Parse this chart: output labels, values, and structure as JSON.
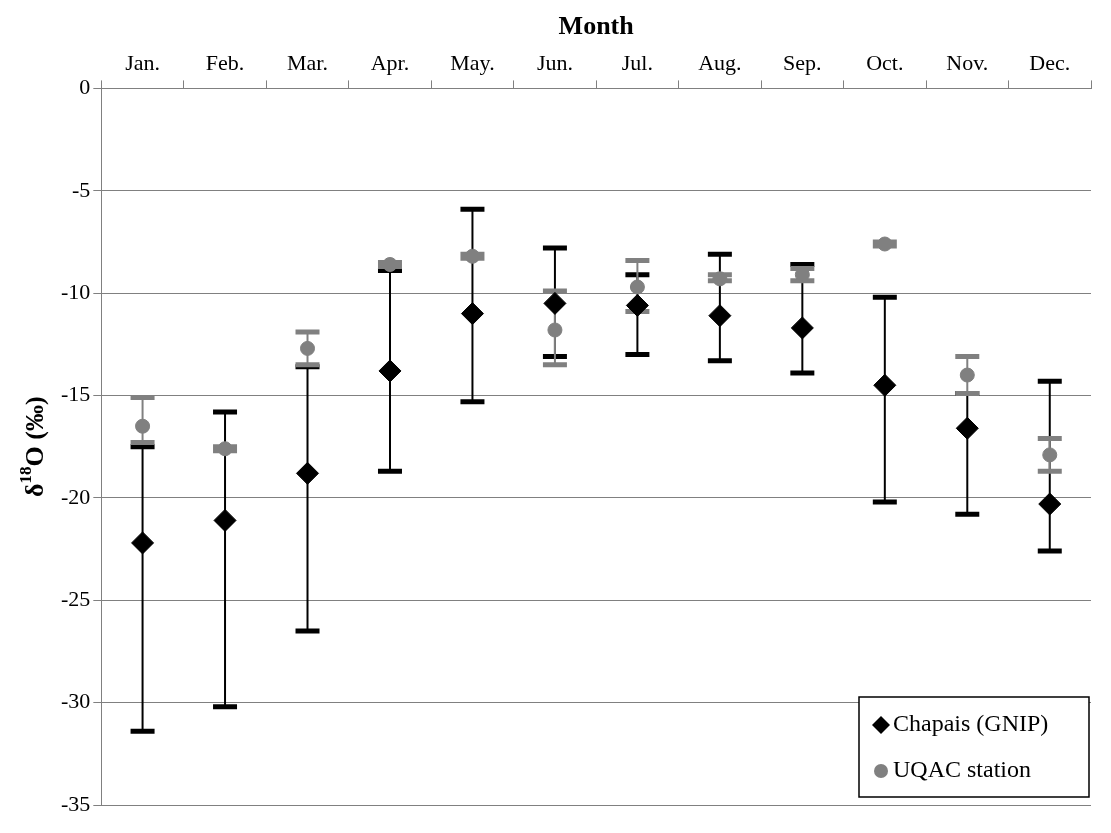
{
  "chart_data": {
    "type": "scatter",
    "xlabel": "Month",
    "ylabel": "δ$^{18}$O (‰)",
    "categories": [
      "Jan.",
      "Feb.",
      "Mar.",
      "Apr.",
      "May.",
      "Jun.",
      "Jul.",
      "Aug.",
      "Sep.",
      "Oct.",
      "Nov.",
      "Dec."
    ],
    "ylim": [
      -35,
      0
    ],
    "yticks": [
      -35,
      -30,
      -25,
      -20,
      -15,
      -10,
      -5,
      0
    ],
    "grid": "y",
    "legend": "bottom right",
    "series": [
      {
        "name": "Chapais (GNIP)",
        "color": "#000000",
        "marker": "diamond",
        "values": [
          -22.2,
          -21.1,
          -18.8,
          -13.8,
          -11.0,
          -10.5,
          -10.6,
          -11.1,
          -11.7,
          -14.5,
          -16.6,
          -20.3
        ],
        "errors": [
          [
            -31.4,
            -17.5
          ],
          [
            -30.2,
            -15.8
          ],
          [
            -26.5,
            -13.6
          ],
          [
            -18.7,
            -8.9
          ],
          [
            -15.3,
            -5.9
          ],
          [
            -13.1,
            -7.8
          ],
          [
            -13.0,
            -9.1
          ],
          [
            -13.3,
            -8.1
          ],
          [
            -13.9,
            -8.6
          ],
          [
            -20.2,
            -10.2
          ],
          [
            -20.8,
            -14.9
          ],
          [
            -22.6,
            -14.3
          ]
        ]
      },
      {
        "name": "UQAC station",
        "color": "#808080",
        "marker": "circle",
        "values": [
          -16.5,
          -17.6,
          -12.7,
          -8.6,
          -8.2,
          -11.8,
          -9.7,
          -9.3,
          -9.1,
          -7.6,
          -14.0,
          -17.9
        ],
        "errors": [
          [
            -17.3,
            -15.1
          ],
          [
            -17.7,
            -17.5
          ],
          [
            -13.5,
            -11.9
          ],
          [
            -8.7,
            -8.5
          ],
          [
            -8.3,
            -8.1
          ],
          [
            -13.5,
            -9.9
          ],
          [
            -10.9,
            -8.4
          ],
          [
            -9.4,
            -9.1
          ],
          [
            -9.4,
            -8.8
          ],
          [
            -7.7,
            -7.5
          ],
          [
            -14.9,
            -13.1
          ],
          [
            -18.7,
            -17.1
          ]
        ]
      }
    ]
  }
}
